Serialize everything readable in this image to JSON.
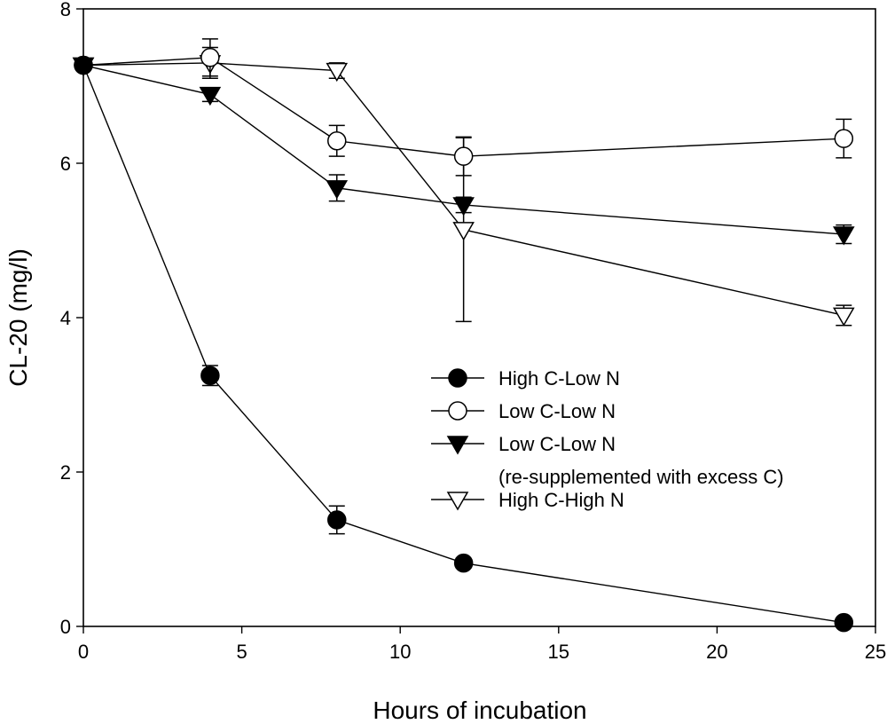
{
  "chart_data": {
    "type": "line",
    "title": "",
    "xlabel": "Hours of incubation",
    "ylabel": "CL-20 (mg/l)",
    "xlim": [
      0,
      25
    ],
    "ylim": [
      0,
      8
    ],
    "xticks": [
      0,
      5,
      10,
      15,
      20,
      25
    ],
    "yticks": [
      0,
      2,
      4,
      6,
      8
    ],
    "grid": false,
    "legend_position": "center-right",
    "series": [
      {
        "name": "High C-Low N",
        "marker": "filled-circle",
        "x": [
          0,
          4,
          8,
          12,
          24
        ],
        "y": [
          7.27,
          3.25,
          1.38,
          0.82,
          0.05
        ],
        "err": [
          0.05,
          0.13,
          0.18,
          0.06,
          0.04
        ]
      },
      {
        "name": "Low C-Low N",
        "marker": "open-circle",
        "x": [
          0,
          4,
          8,
          12,
          24
        ],
        "y": [
          7.27,
          7.37,
          6.29,
          6.09,
          6.32
        ],
        "err": [
          0.05,
          0.24,
          0.2,
          0.25,
          0.25
        ]
      },
      {
        "name": "Low C-Low N",
        "legend_line2": "(re-supplemented with excess C)",
        "marker": "filled-triangle-down",
        "x": [
          0,
          4,
          8,
          12,
          24
        ],
        "y": [
          7.27,
          6.89,
          5.68,
          5.46,
          5.08
        ],
        "err": [
          0.05,
          0.09,
          0.17,
          0.1,
          0.12
        ]
      },
      {
        "name": "High C-High N",
        "marker": "open-triangle-down",
        "x": [
          0,
          4,
          8,
          12,
          24
        ],
        "y": [
          7.27,
          7.3,
          7.2,
          5.14,
          4.03
        ],
        "err": [
          0.05,
          0.2,
          0.1,
          1.19,
          0.13
        ]
      }
    ]
  }
}
